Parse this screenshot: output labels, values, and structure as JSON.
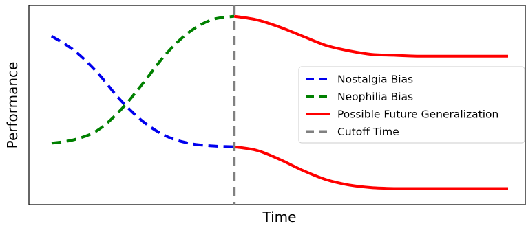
{
  "chart_data": {
    "type": "line",
    "title": "",
    "xlabel": "Time",
    "ylabel": "Performance",
    "xlim": [
      0,
      10.6
    ],
    "ylim": [
      0,
      1
    ],
    "xticks_shown": false,
    "yticks_shown": false,
    "grid": false,
    "legend_position": "center-right",
    "series": [
      {
        "name": "Nostalgia Bias",
        "color": "#0000ee",
        "style": "dashed",
        "x": [
          0,
          0.5,
          1,
          1.5,
          2,
          2.5,
          3,
          3.5,
          4
        ],
        "y": [
          0.88,
          0.8,
          0.68,
          0.53,
          0.41,
          0.33,
          0.29,
          0.275,
          0.27
        ]
      },
      {
        "name": "Neophilia Bias",
        "color": "#008000",
        "style": "dashed",
        "x": [
          0,
          0.5,
          1,
          1.5,
          2,
          2.5,
          3,
          3.5,
          4
        ],
        "y": [
          0.29,
          0.31,
          0.36,
          0.47,
          0.62,
          0.78,
          0.9,
          0.97,
          0.99
        ]
      },
      {
        "name": "Possible Future Generalization",
        "color": "#ff0000",
        "style": "solid",
        "x": [
          4,
          4.5,
          5,
          5.5,
          6,
          6.5,
          7,
          7.5,
          8,
          9,
          10
        ],
        "y": [
          0.99,
          0.97,
          0.93,
          0.88,
          0.83,
          0.8,
          0.78,
          0.775,
          0.77,
          0.77,
          0.77
        ]
      },
      {
        "name": "",
        "color": "#ff0000",
        "style": "solid",
        "x": [
          4,
          4.5,
          5,
          5.5,
          6,
          6.5,
          7,
          7.5,
          8,
          9,
          10
        ],
        "y": [
          0.27,
          0.25,
          0.2,
          0.14,
          0.09,
          0.06,
          0.045,
          0.04,
          0.04,
          0.04,
          0.04
        ]
      }
    ],
    "vlines": [
      {
        "name": "Cutoff Time",
        "x": 4,
        "color": "#808080",
        "style": "dashed"
      }
    ],
    "legend": [
      {
        "label": "Nostalgia Bias",
        "color": "#0000ee",
        "style": "dashed"
      },
      {
        "label": "Neophilia Bias",
        "color": "#008000",
        "style": "dashed"
      },
      {
        "label": "Possible Future Generalization",
        "color": "#ff0000",
        "style": "solid"
      },
      {
        "label": "Cutoff Time",
        "color": "#808080",
        "style": "dashed"
      }
    ]
  }
}
